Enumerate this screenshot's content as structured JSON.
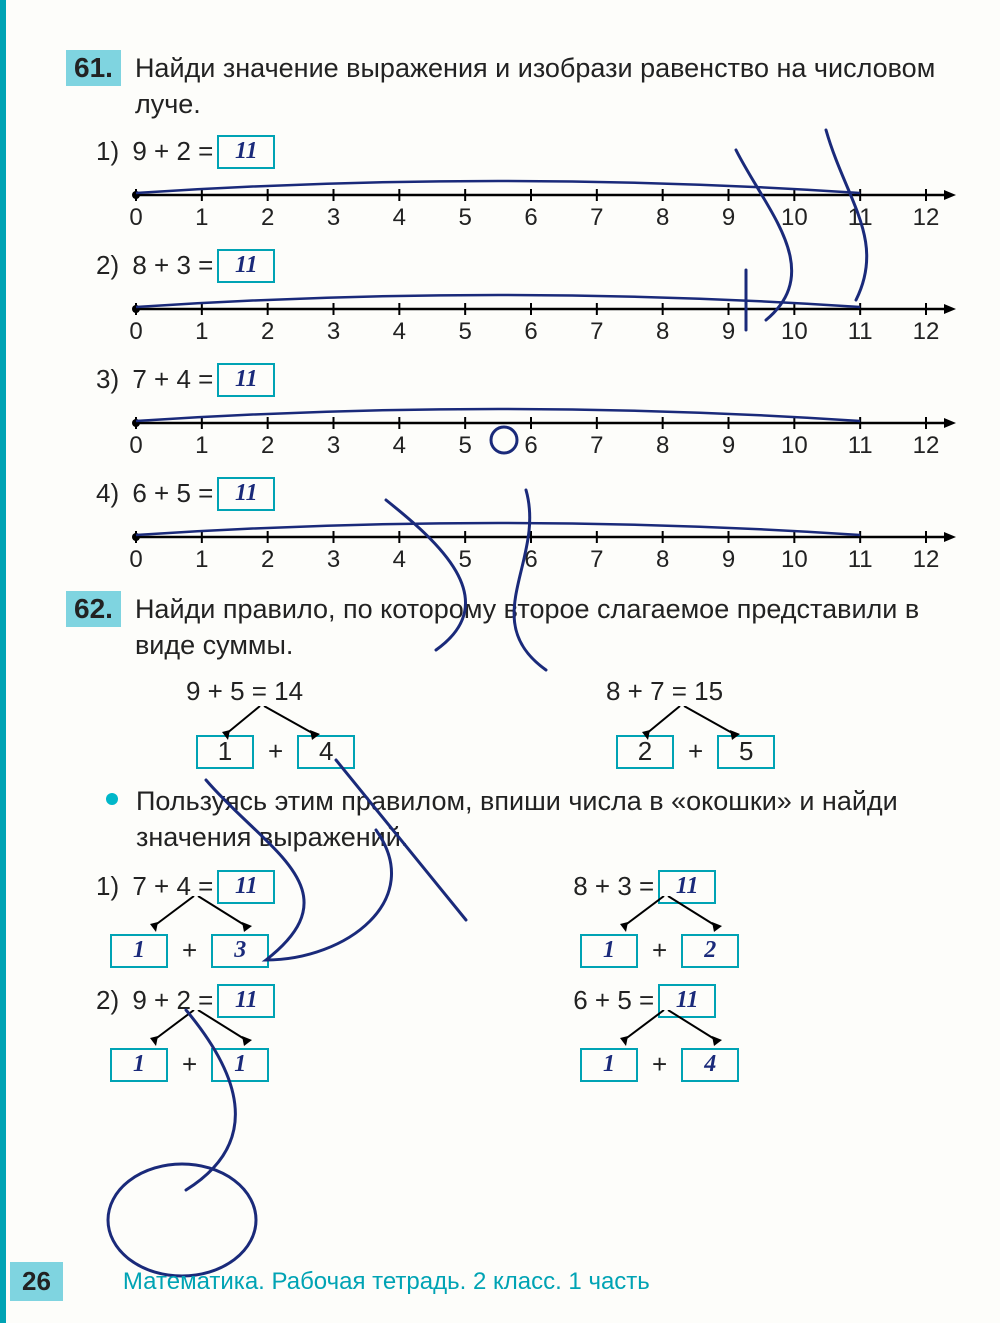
{
  "page_number": "26",
  "footer": "Математика. Рабочая тетрадь. 2 класс. 1 часть",
  "colors": {
    "accent": "#00a3b4",
    "highlight": "#7fd4e0",
    "ink": "#1a2a7a",
    "text": "#222222"
  },
  "numberline": {
    "min": 0,
    "max": 12,
    "tick_step": 1,
    "label_fontsize": 24,
    "tick_height": 12,
    "line_color": "#000000"
  },
  "task61": {
    "number": "61.",
    "text": "Найди значение выражения и изобрази равенство на числовом луче.",
    "items": [
      {
        "n": "1)",
        "a": "9",
        "op": "+",
        "b": "2",
        "eq": "=",
        "ans": "11"
      },
      {
        "n": "2)",
        "a": "8",
        "op": "+",
        "b": "3",
        "eq": "=",
        "ans": "11"
      },
      {
        "n": "3)",
        "a": "7",
        "op": "+",
        "b": "4",
        "eq": "=",
        "ans": "11"
      },
      {
        "n": "4)",
        "a": "6",
        "op": "+",
        "b": "5",
        "eq": "=",
        "ans": "11"
      }
    ]
  },
  "task62": {
    "number": "62.",
    "text": "Найди правило, по которому второе слагаемое представили в виде суммы.",
    "examples": [
      {
        "top": "9 + 5 = 14",
        "p1": "1",
        "plus": "+",
        "p2": "4"
      },
      {
        "top": "8 + 7 = 15",
        "p1": "2",
        "plus": "+",
        "p2": "5"
      }
    ],
    "bullet": "Пользуясь этим правилом, впиши числа в «окошки» и найди значения выражений.",
    "subitems": [
      {
        "n": "1)",
        "left": {
          "a": "7",
          "op": "+",
          "b": "4",
          "eq": "=",
          "ans": "11",
          "p1": "1",
          "plus": "+",
          "p2": "3"
        },
        "right": {
          "a": "8",
          "op": "+",
          "b": "3",
          "eq": "=",
          "ans": "11",
          "p1": "1",
          "plus": "+",
          "p2": "2"
        }
      },
      {
        "n": "2)",
        "left": {
          "a": "9",
          "op": "+",
          "b": "2",
          "eq": "=",
          "ans": "11",
          "p1": "1",
          "plus": "+",
          "p2": "1"
        },
        "right": {
          "a": "6",
          "op": "+",
          "b": "5",
          "eq": "=",
          "ans": "11",
          "p1": "1",
          "plus": "+",
          "p2": "4"
        }
      }
    ]
  }
}
